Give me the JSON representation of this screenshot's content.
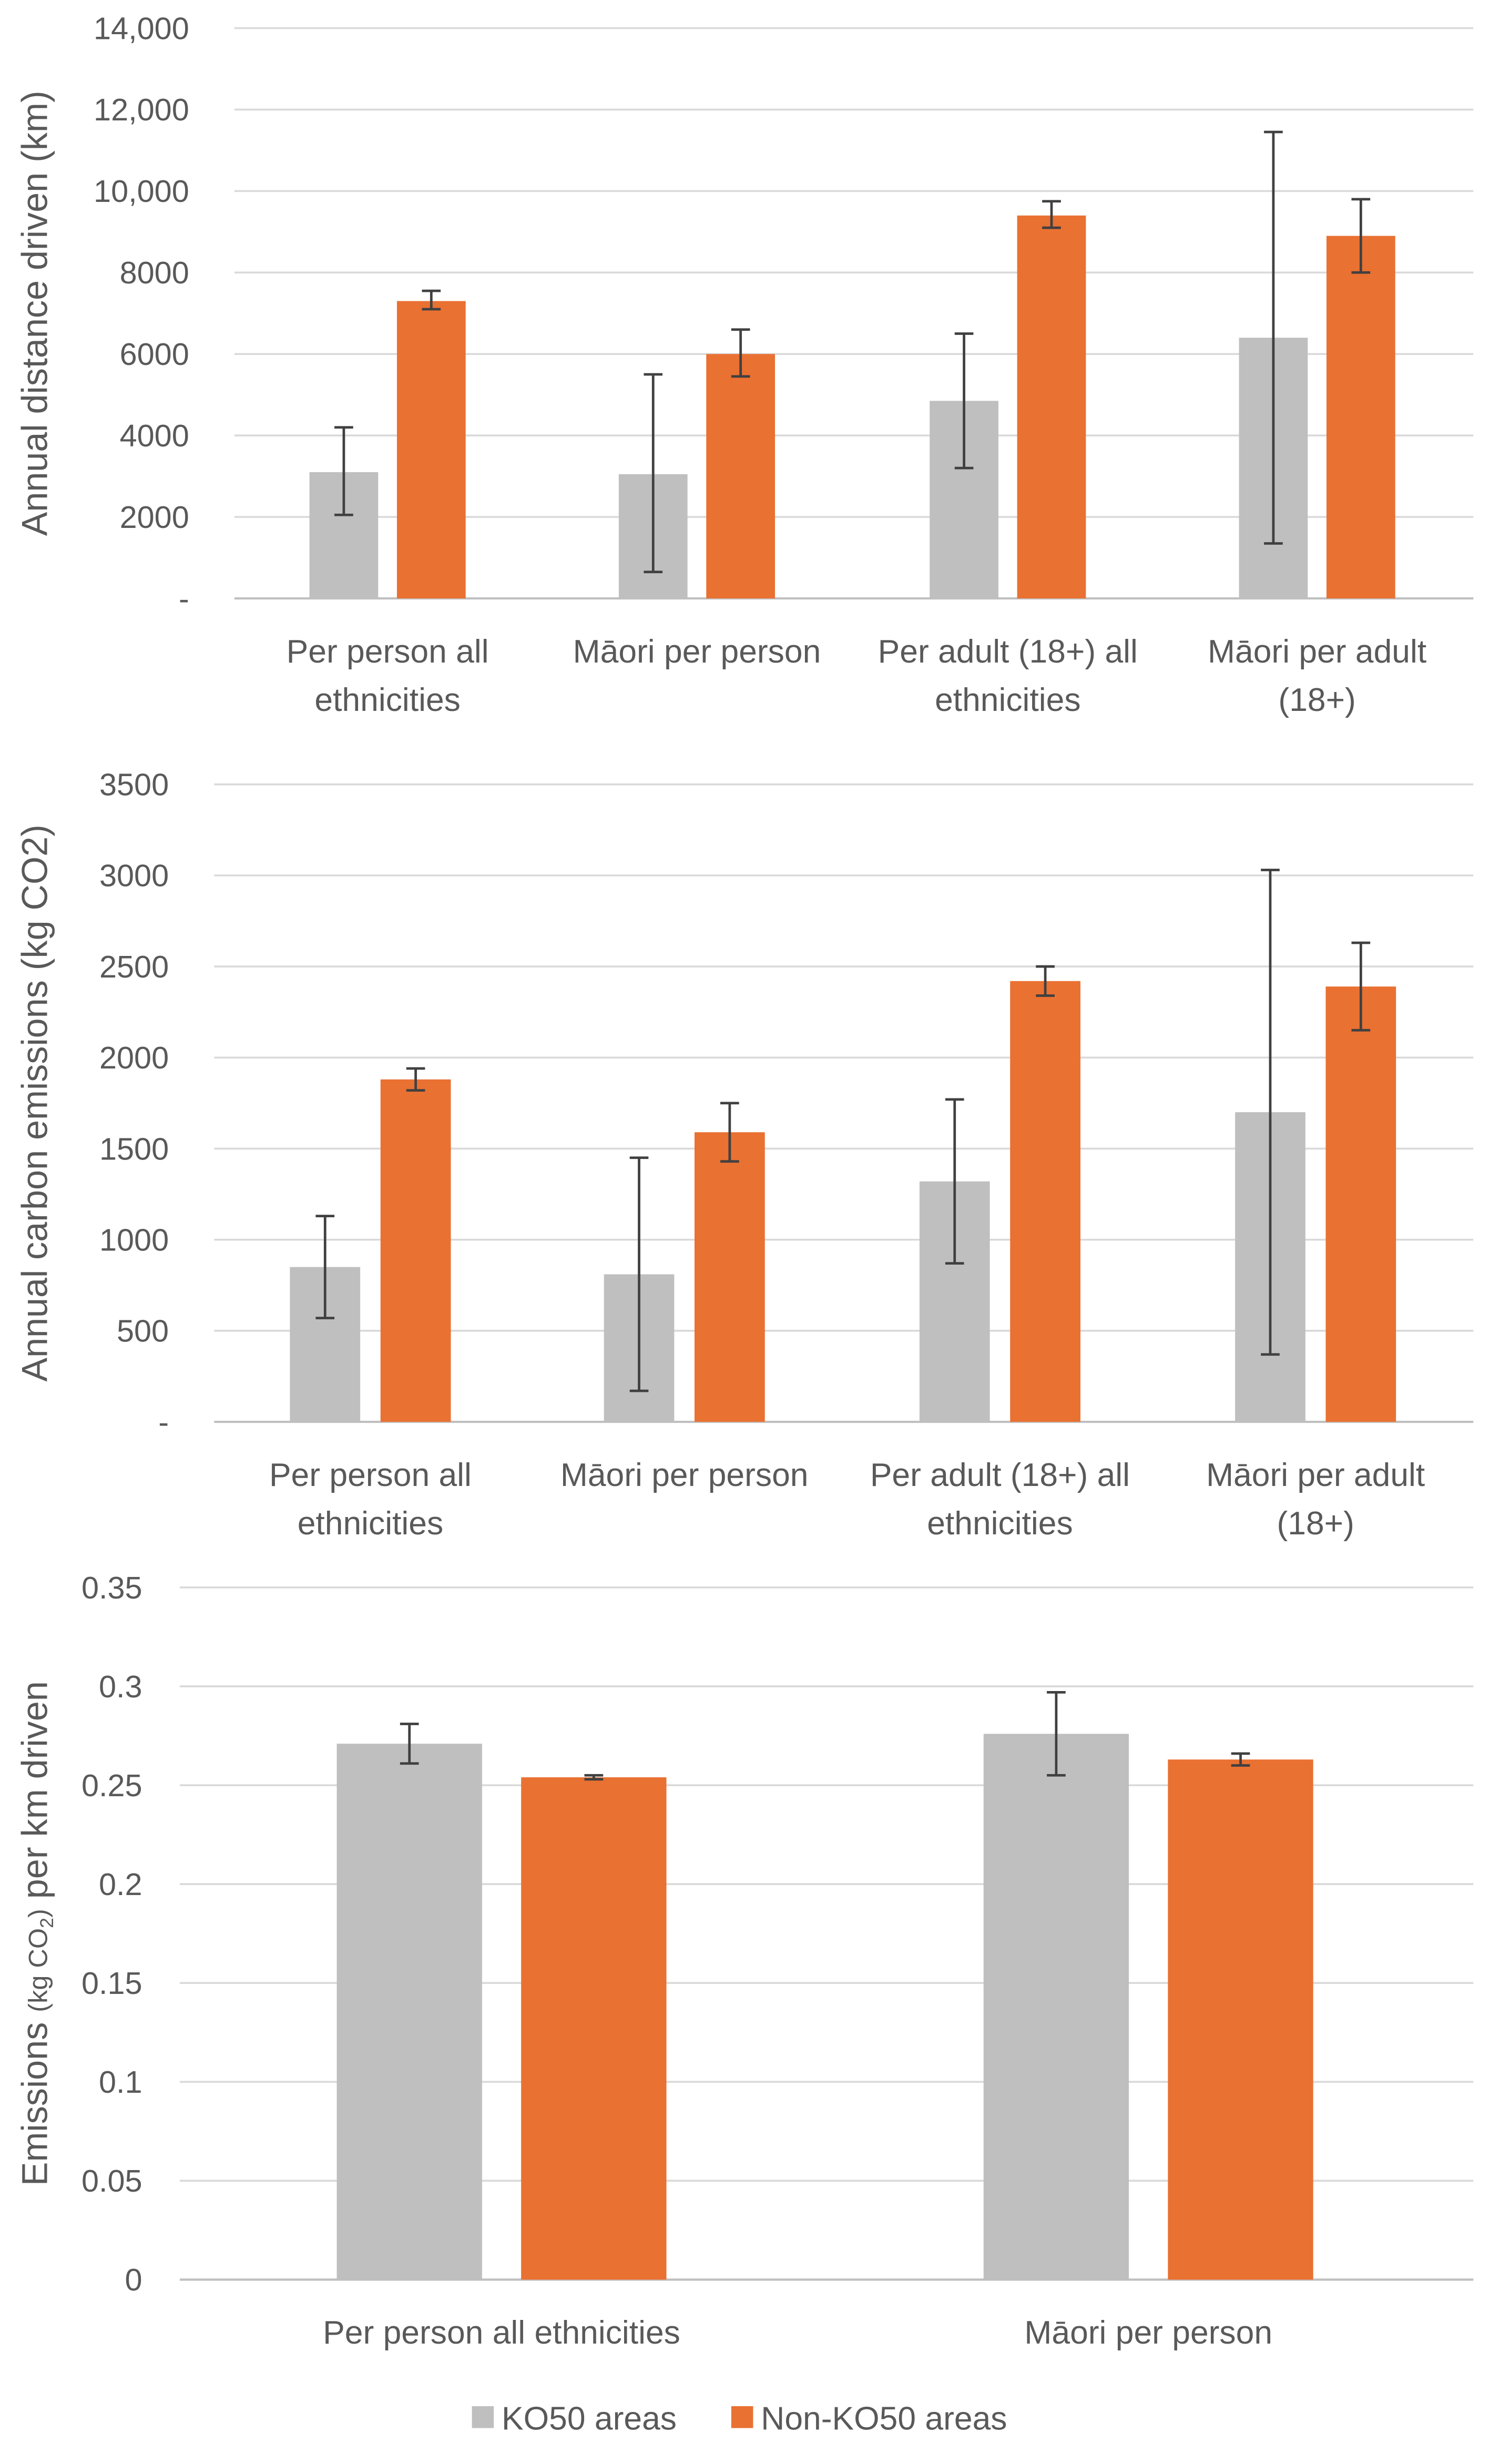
{
  "colors": {
    "ko50": "#bfbfbf",
    "nonko50": "#e97132"
  },
  "legend": [
    "KO50 areas",
    "Non-KO50 areas"
  ],
  "chart_data": [
    {
      "type": "bar",
      "ylabel": "Annual distance driven (km)",
      "ylim": [
        0,
        14000
      ],
      "yticks": [
        "-",
        "2000",
        "4000",
        "6000",
        "8000",
        "10,000",
        "12,000",
        "14,000"
      ],
      "categories": [
        [
          "Per person all",
          "ethnicities"
        ],
        [
          "Māori per person"
        ],
        [
          "Per adult (18+) all",
          "ethnicities"
        ],
        [
          "Māori per adult",
          "(18+)"
        ]
      ],
      "series": [
        {
          "name": "KO50 areas",
          "values": [
            3100,
            3050,
            4850,
            6400
          ],
          "err_low": [
            2050,
            650,
            3200,
            1350
          ],
          "err_high": [
            4200,
            5500,
            6500,
            11450
          ]
        },
        {
          "name": "Non-KO50 areas",
          "values": [
            7300,
            6000,
            9400,
            8900
          ],
          "err_low": [
            7100,
            5450,
            9100,
            8000
          ],
          "err_high": [
            7550,
            6600,
            9750,
            9800
          ]
        }
      ],
      "grid": true
    },
    {
      "type": "bar",
      "ylabel": "Annual carbon emissions (kg CO2)",
      "ylim": [
        0,
        3500
      ],
      "yticks": [
        "-",
        "500",
        "1000",
        "1500",
        "2000",
        "2500",
        "3000",
        "3500"
      ],
      "categories": [
        [
          "Per person all",
          "ethnicities"
        ],
        [
          "Māori per person"
        ],
        [
          "Per adult (18+) all",
          "ethnicities"
        ],
        [
          "Māori per adult",
          "(18+)"
        ]
      ],
      "series": [
        {
          "name": "KO50 areas",
          "values": [
            850,
            810,
            1320,
            1700
          ],
          "err_low": [
            570,
            170,
            870,
            370
          ],
          "err_high": [
            1130,
            1450,
            1770,
            3030
          ]
        },
        {
          "name": "Non-KO50 areas",
          "values": [
            1880,
            1590,
            2420,
            2390
          ],
          "err_low": [
            1820,
            1430,
            2340,
            2150
          ],
          "err_high": [
            1940,
            1750,
            2500,
            2630
          ]
        }
      ],
      "grid": true
    },
    {
      "type": "bar",
      "ylabel": "Emissions (kg CO2) per km driven",
      "ylim": [
        0,
        0.35
      ],
      "yticks": [
        "0",
        "0.05",
        "0.1",
        "0.15",
        "0.2",
        "0.25",
        "0.3",
        "0.35"
      ],
      "categories": [
        [
          "Per person all ethnicities"
        ],
        [
          "Māori per person"
        ]
      ],
      "series": [
        {
          "name": "KO50 areas",
          "values": [
            0.271,
            0.276
          ],
          "err_low": [
            0.261,
            0.255
          ],
          "err_high": [
            0.281,
            0.297
          ]
        },
        {
          "name": "Non-KO50 areas",
          "values": [
            0.254,
            0.263
          ],
          "err_low": [
            0.253,
            0.26
          ],
          "err_high": [
            0.255,
            0.266
          ]
        }
      ],
      "grid": true
    }
  ]
}
